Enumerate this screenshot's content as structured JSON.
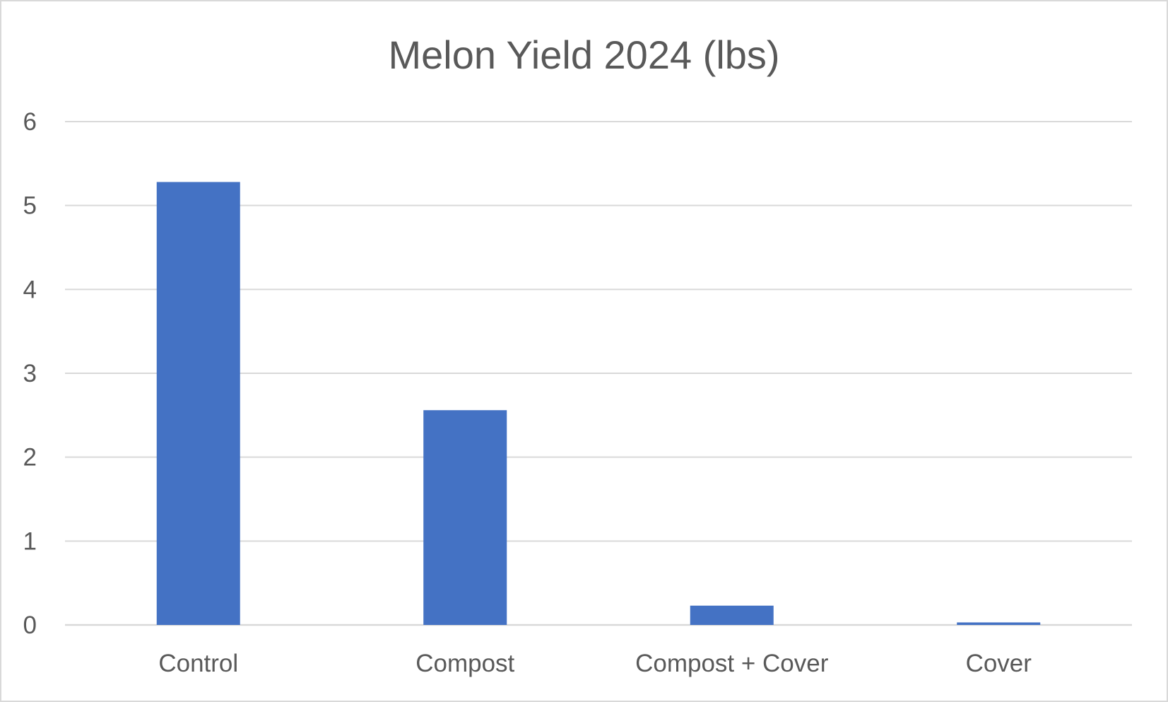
{
  "chart_data": {
    "type": "bar",
    "title": "Melon Yield 2024 (lbs)",
    "categories": [
      "Control",
      "Compost",
      "Compost + Cover",
      "Cover"
    ],
    "values": [
      5.28,
      2.56,
      0.23,
      0.03
    ],
    "xlabel": "",
    "ylabel": "",
    "ylim": [
      0,
      6
    ],
    "yticks": [
      "0",
      "1",
      "2",
      "3",
      "4",
      "5",
      "6"
    ],
    "grid": true,
    "legend": "none",
    "bar_color": "#4472c4",
    "grid_color": "#d9d9d9",
    "text_color": "#595959"
  }
}
